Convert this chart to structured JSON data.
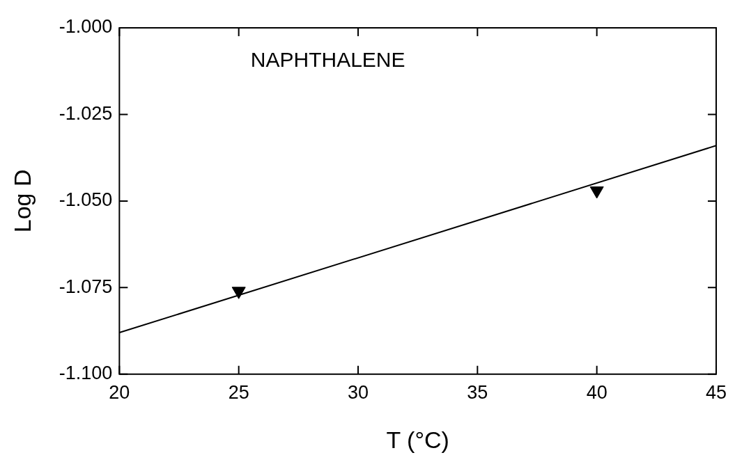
{
  "chart_data": {
    "type": "scatter",
    "xlabel": "T (°C)",
    "ylabel": "Log D",
    "annotations": [
      "NAPHTHALENE"
    ],
    "xlim": [
      20,
      45
    ],
    "xticks": [
      20,
      25,
      30,
      35,
      40,
      45
    ],
    "ylim": [
      -1.1,
      -1.0
    ],
    "yticks": [
      {
        "value": -1.1,
        "label": "-1.100"
      },
      {
        "value": -1.075,
        "label": "-1.075"
      },
      {
        "value": -1.05,
        "label": "-1.050"
      },
      {
        "value": -1.025,
        "label": "-1.025"
      },
      {
        "value": -1.0,
        "label": "-1.000"
      }
    ],
    "series": [
      {
        "color": "#000000",
        "marker": "triangle",
        "x": [
          25,
          40
        ],
        "values": [
          -1.076,
          -1.047
        ]
      },
      {
        "type": "line",
        "color": "#000000",
        "marker": "none",
        "line_style": "solid",
        "x": [
          20,
          45
        ],
        "values": [
          -1.088,
          -1.034
        ]
      }
    ]
  }
}
